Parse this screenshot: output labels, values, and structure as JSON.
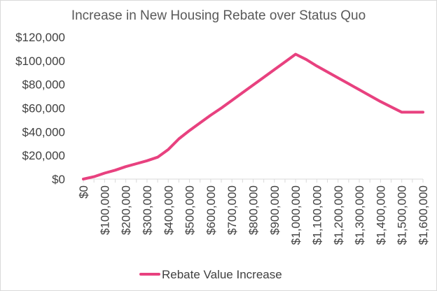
{
  "chart_data": {
    "type": "line",
    "title": "Increase in New Housing Rebate over Status Quo",
    "xlabel": "",
    "ylabel": "",
    "y_tick_labels": [
      "$0",
      "$20,000",
      "$40,000",
      "$60,000",
      "$80,000",
      "$100,000",
      "$120,000"
    ],
    "y_ticks": [
      0,
      20000,
      40000,
      60000,
      80000,
      100000,
      120000
    ],
    "ylim": [
      0,
      120000
    ],
    "x_tick_labels": [
      "$0",
      "$100,000",
      "$200,000",
      "$300,000",
      "$400,000",
      "$500,000",
      "$600,000",
      "$700,000",
      "$800,000",
      "$900,000",
      "$1,000,000",
      "$1,100,000",
      "$1,200,000",
      "$1,300,000",
      "$1,400,000",
      "$1,500,000",
      "$1,600,000"
    ],
    "x_ticks": [
      0,
      100000,
      200000,
      300000,
      400000,
      500000,
      600000,
      700000,
      800000,
      900000,
      1000000,
      1100000,
      1200000,
      1300000,
      1400000,
      1500000,
      1600000
    ],
    "xlim": [
      0,
      1600000
    ],
    "grid": false,
    "legend_position": "bottom",
    "series": [
      {
        "name": "Rebate Value Increase",
        "color": "#e8417f",
        "x": [
          0,
          50000,
          100000,
          150000,
          200000,
          250000,
          300000,
          350000,
          400000,
          450000,
          500000,
          550000,
          600000,
          650000,
          700000,
          750000,
          800000,
          850000,
          900000,
          950000,
          1000000,
          1050000,
          1100000,
          1150000,
          1200000,
          1250000,
          1300000,
          1350000,
          1400000,
          1450000,
          1500000,
          1550000,
          1600000
        ],
        "values": [
          0,
          2000,
          5000,
          7500,
          10500,
          13000,
          15500,
          18500,
          25000,
          34000,
          41000,
          47500,
          54000,
          60000,
          66500,
          73000,
          79500,
          86000,
          92500,
          99000,
          105500,
          101000,
          95500,
          90500,
          85500,
          80500,
          75500,
          70500,
          65500,
          61000,
          56500,
          56500,
          56500
        ]
      }
    ]
  }
}
